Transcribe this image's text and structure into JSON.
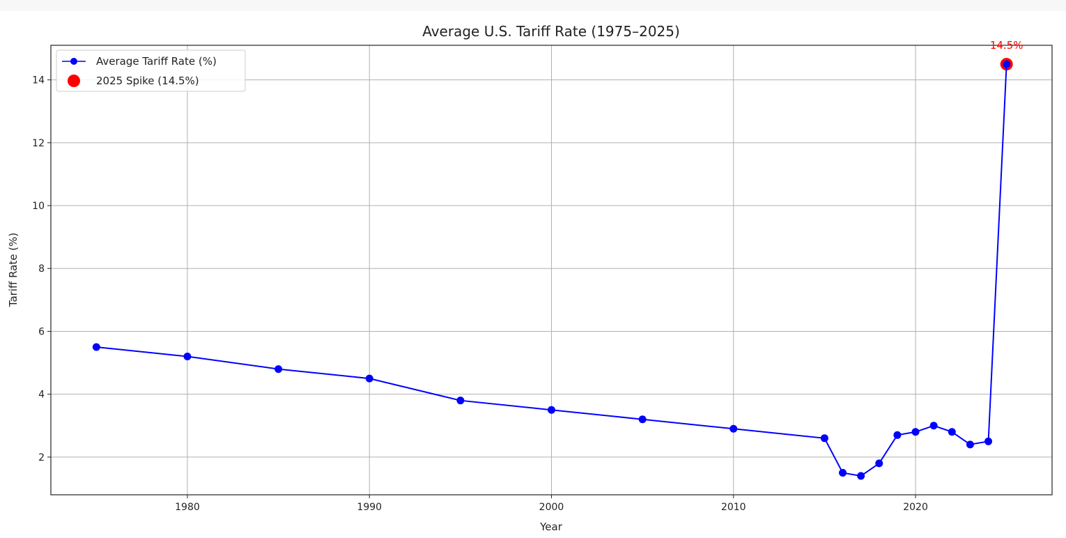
{
  "chart_data": {
    "type": "line",
    "title": "Average U.S. Tariff Rate (1975–2025)",
    "xlabel": "Year",
    "ylabel": "Tariff Rate (%)",
    "xlim": [
      1972.5,
      2027.5
    ],
    "ylim": [
      0.8,
      15.1
    ],
    "x_ticks": [
      1980,
      1990,
      2000,
      2010,
      2020
    ],
    "y_ticks": [
      2,
      4,
      6,
      8,
      10,
      12,
      14
    ],
    "grid": true,
    "legend_position": "upper-left",
    "series": [
      {
        "name": "Average Tariff Rate (%)",
        "color": "#0000ff",
        "marker": "circle",
        "x": [
          1975,
          1980,
          1985,
          1990,
          1995,
          2000,
          2005,
          2010,
          2015,
          2016,
          2017,
          2018,
          2019,
          2020,
          2021,
          2022,
          2023,
          2024,
          2025
        ],
        "y": [
          5.5,
          5.2,
          4.8,
          4.5,
          3.8,
          3.5,
          3.2,
          2.9,
          2.6,
          1.5,
          1.4,
          1.8,
          2.7,
          2.8,
          3.0,
          2.8,
          2.4,
          2.5,
          14.5
        ]
      }
    ],
    "highlight": {
      "name": "2025 Spike (14.5%)",
      "color": "#ff0000",
      "x": 2025,
      "y": 14.5,
      "annotation": "14.5%"
    }
  }
}
